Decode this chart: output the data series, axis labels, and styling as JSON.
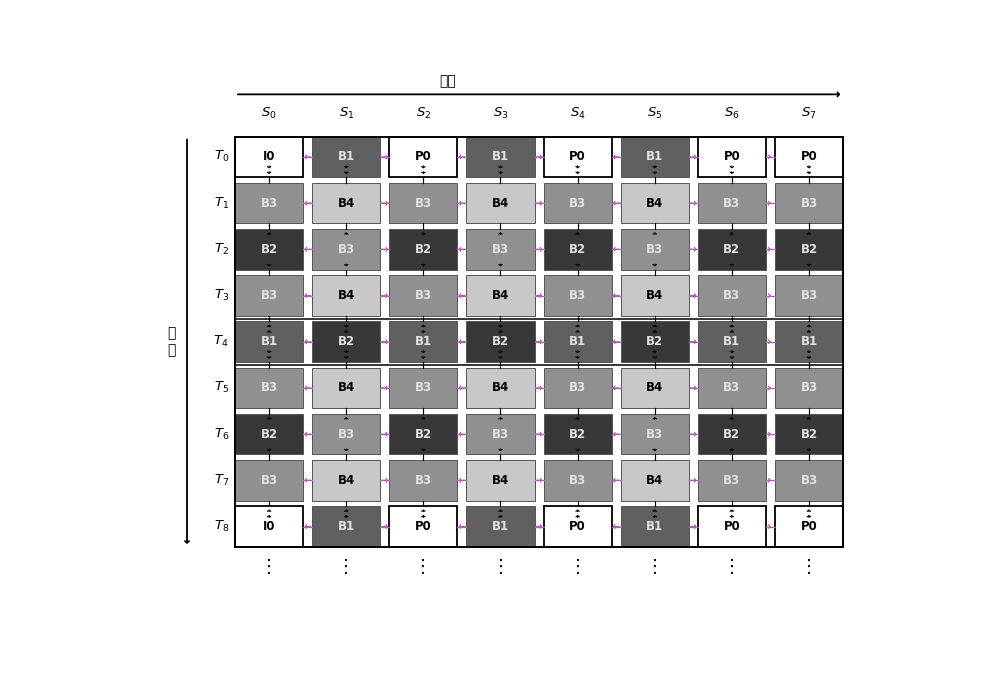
{
  "fig_width": 10.0,
  "fig_height": 6.9,
  "bg_color": "#ffffff",
  "grid_rows": 9,
  "grid_cols": 8,
  "row_labels": [
    "T_0",
    "T_1",
    "T_2",
    "T_3",
    "T_4",
    "T_5",
    "T_6",
    "T_7",
    "T_8"
  ],
  "col_labels": [
    "S_0",
    "S_1",
    "S_2",
    "S_3",
    "S_4",
    "S_5",
    "S_6",
    "S_7"
  ],
  "grid_content": [
    [
      "I0",
      "B1",
      "P0",
      "B1",
      "P0",
      "B1",
      "P0",
      "P0"
    ],
    [
      "B3",
      "B4",
      "B3",
      "B4",
      "B3",
      "B4",
      "B3",
      "B3"
    ],
    [
      "B2",
      "B3",
      "B2",
      "B3",
      "B2",
      "B3",
      "B2",
      "B2"
    ],
    [
      "B3",
      "B4",
      "B3",
      "B4",
      "B3",
      "B4",
      "B3",
      "B3"
    ],
    [
      "B1",
      "B2",
      "B1",
      "B2",
      "B1",
      "B2",
      "B1",
      "B1"
    ],
    [
      "B3",
      "B4",
      "B3",
      "B4",
      "B3",
      "B4",
      "B3",
      "B3"
    ],
    [
      "B2",
      "B3",
      "B2",
      "B3",
      "B2",
      "B3",
      "B2",
      "B2"
    ],
    [
      "B3",
      "B4",
      "B3",
      "B4",
      "B3",
      "B4",
      "B3",
      "B3"
    ],
    [
      "I0",
      "B1",
      "P0",
      "B1",
      "P0",
      "B1",
      "P0",
      "P0"
    ]
  ],
  "cell_colors": {
    "I0": "#ffffff",
    "P0": "#ffffff",
    "B1": "#606060",
    "B2": "#383838",
    "B3": "#909090",
    "B4": "#c8c8c8"
  },
  "cell_text_colors": {
    "I0": "#000000",
    "P0": "#000000",
    "B1": "#e0e0e0",
    "B2": "#e0e0e0",
    "B3": "#e0e0e0",
    "B4": "#000000"
  },
  "arrow_color_h": "#b060b0",
  "arrow_color_v": "#000000",
  "font_size_cell": 8.5,
  "font_size_label": 9.5,
  "font_size_axis_label": 10
}
